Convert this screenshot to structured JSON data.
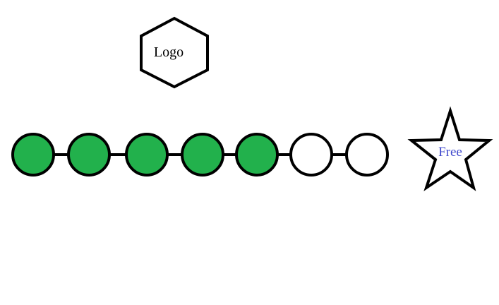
{
  "logo": {
    "label": "Logo"
  },
  "progress": {
    "total_steps": 7,
    "completed_steps": 5,
    "filled_color": "#22b14c",
    "empty_color": "#ffffff",
    "outline_color": "#000000"
  },
  "reward": {
    "label": "Free",
    "label_color": "#3f48cc",
    "icon": "star-icon"
  }
}
